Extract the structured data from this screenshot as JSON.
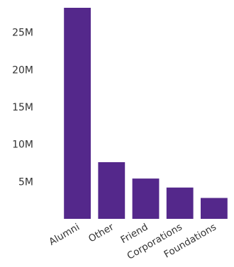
{
  "chart_data": {
    "type": "bar",
    "title": "",
    "xlabel": "",
    "ylabel": "",
    "categories": [
      "Alumni",
      "Other",
      "Friend",
      "Corporations",
      "Foundations"
    ],
    "values": [
      28.3,
      7.6,
      5.4,
      4.2,
      2.8
    ],
    "unit_suffix": "M",
    "yticks": [
      {
        "value": 5,
        "label": "5M"
      },
      {
        "value": 10,
        "label": "10M"
      },
      {
        "value": 15,
        "label": "15M"
      },
      {
        "value": 20,
        "label": "20M"
      },
      {
        "value": 25,
        "label": "25M"
      }
    ],
    "ylim": [
      0,
      28.3
    ],
    "grid": false,
    "legend": "none",
    "bar_color": "#54288b"
  }
}
